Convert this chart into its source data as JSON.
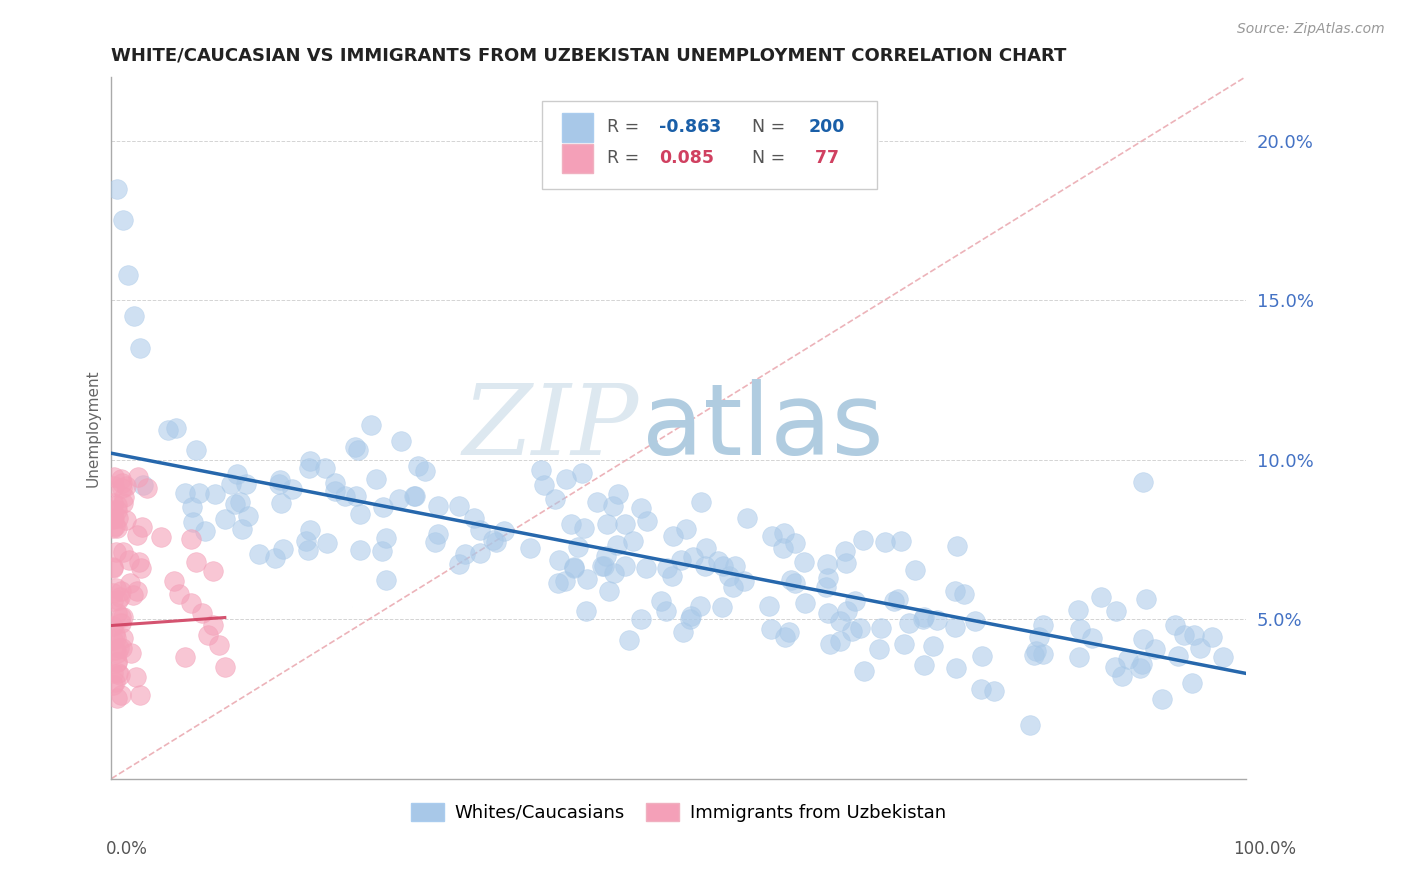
{
  "title": "WHITE/CAUCASIAN VS IMMIGRANTS FROM UZBEKISTAN UNEMPLOYMENT CORRELATION CHART",
  "source": "Source: ZipAtlas.com",
  "ylabel": "Unemployment",
  "right_yticks": [
    "5.0%",
    "10.0%",
    "15.0%",
    "20.0%"
  ],
  "right_ytick_vals": [
    0.05,
    0.1,
    0.15,
    0.2
  ],
  "blue_R": "-0.863",
  "blue_N": "200",
  "pink_R": "0.085",
  "pink_N": "77",
  "blue_scatter_color": "#a8c8e8",
  "blue_line_color": "#1a5fa8",
  "pink_scatter_color": "#f4a0b8",
  "pink_line_color": "#d04060",
  "dashed_color": "#e8a0a8",
  "watermark_zip": "ZIP",
  "watermark_atlas": "atlas",
  "legend_label_blue": "Whites/Caucasians",
  "legend_label_pink": "Immigrants from Uzbekistan",
  "xlim": [
    0.0,
    1.0
  ],
  "ylim": [
    0.0,
    0.22
  ],
  "blue_trend_start_y": 0.102,
  "blue_trend_end_y": 0.033,
  "pink_trend_start_x": 0.0,
  "pink_trend_end_x": 0.08,
  "pink_trend_start_y": 0.048,
  "pink_trend_end_y": 0.052
}
